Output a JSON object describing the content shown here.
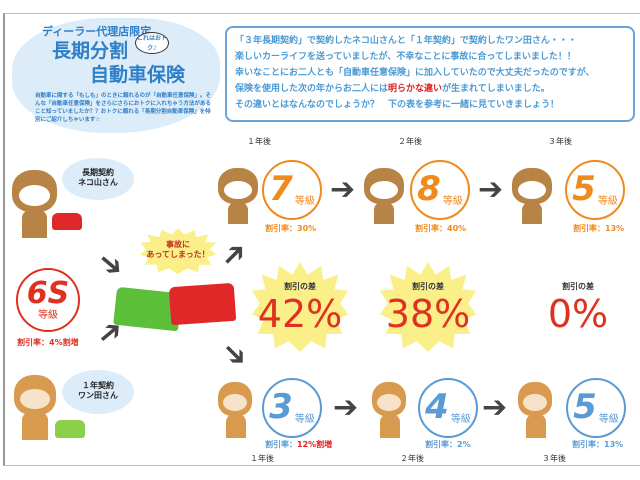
{
  "title": {
    "subtitle": "ディーラー代理店限定",
    "main_line1": "長期分割",
    "main_line2": "自動車保険",
    "badge": "これはおトク♪",
    "description": "自動車に関する「もしも」のときに頼れるのが「自動車任意保険」。そんな「自動車任意保険」をさらにさらにおトクに入れちゃう方法があること知っていましたか？？おトクに頼れる「長期分割自動車保険」を特別にご紹介しちゃいます☆"
  },
  "intro": {
    "line1": "「３年長期契約」で契約したネコ山さんと「１年契約」で契約したワン田さん・・・",
    "line2": "楽しいカーライフを送っていましたが、不幸なことに事故に合ってしまいました！！",
    "line3": "幸いなことにお二人とも「自動車任意保険」に加入していたので大丈夫だったのですが、",
    "line4_pre": "保険を使用した次の年からお二人には",
    "line4_emph": "明らかな違い",
    "line4_post": "が生まれてしまいました。",
    "line5": "その違いとはなんなのでしょうか？　下の表を参考に一緒に見ていきましょう！"
  },
  "years": [
    "１年後",
    "２年後",
    "３年後"
  ],
  "cat": {
    "label_line1": "長期契約",
    "label_line2": "ネコ山さん",
    "grades": [
      {
        "grade": "7",
        "unit": "等級",
        "rate": "割引率：30%"
      },
      {
        "grade": "8",
        "unit": "等級",
        "rate": "割引率：40%"
      },
      {
        "grade": "5",
        "unit": "等級",
        "rate": "割引率：13%"
      }
    ]
  },
  "dog": {
    "label_line1": "１年契約",
    "label_line2": "ワン田さん",
    "grades": [
      {
        "grade": "3",
        "unit": "等級",
        "rate_prefix": "割引率：",
        "rate_value": "12%割増"
      },
      {
        "grade": "4",
        "unit": "等級",
        "rate_prefix": "割引率：",
        "rate_value": "2%"
      },
      {
        "grade": "5",
        "unit": "等級",
        "rate_prefix": "割引率：",
        "rate_value": "13%"
      }
    ]
  },
  "start": {
    "grade": "6S",
    "unit": "等級",
    "rate": "割引率：4%割増"
  },
  "accident": {
    "line1": "事故に",
    "line2": "あってしまった！"
  },
  "differences": [
    {
      "label": "割引の差",
      "value": "42%"
    },
    {
      "label": "割引の差",
      "value": "38%"
    },
    {
      "label": "割引の差",
      "value": "0%"
    }
  ],
  "colors": {
    "cat_accent": "#f08a1c",
    "dog_accent": "#5b9bd5",
    "start_accent": "#e03020",
    "title_blue": "#2f7fc8",
    "cloud": "#dcecf8",
    "star": "#fbef8a"
  }
}
